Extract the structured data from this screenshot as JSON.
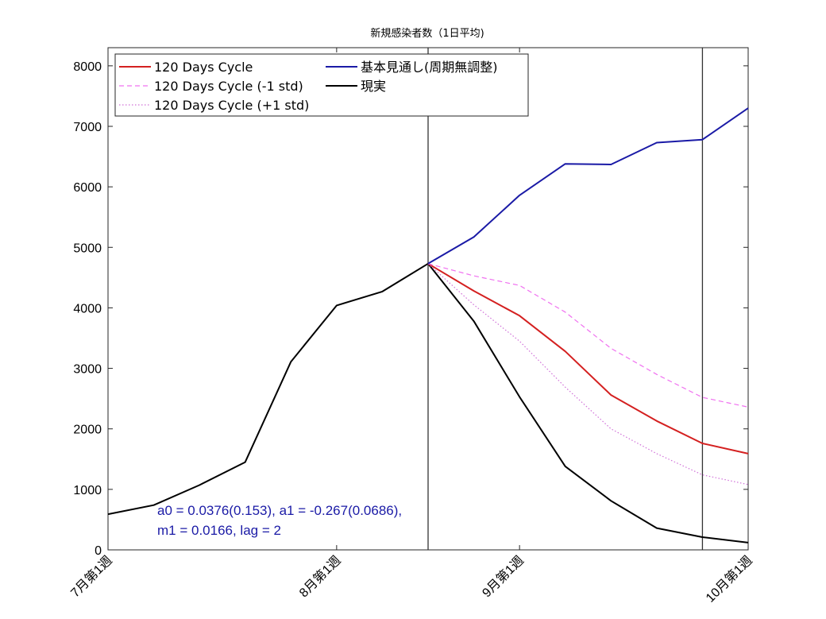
{
  "chart_data": {
    "type": "line",
    "title": "新規感染者数（1日平均)",
    "xlabel": "",
    "ylabel": "",
    "xlim": [
      0,
      14
    ],
    "ylim": [
      0,
      8300
    ],
    "yticks": [
      0,
      1000,
      2000,
      3000,
      4000,
      5000,
      6000,
      7000,
      8000
    ],
    "xticks": [
      {
        "x": 0,
        "label": "7月第1週"
      },
      {
        "x": 5,
        "label": "8月第1週"
      },
      {
        "x": 9,
        "label": "9月第1週"
      },
      {
        "x": 14,
        "label": "10月第1週"
      }
    ],
    "vlines": [
      7,
      13
    ],
    "grid": false,
    "legend_position": "top-left",
    "series": [
      {
        "name": "120 Days Cycle",
        "color": "#d42020",
        "style": "solid",
        "x": [
          7,
          8,
          9,
          10,
          11,
          12,
          13,
          14
        ],
        "y": [
          4730,
          4280,
          3870,
          3280,
          2560,
          2130,
          1760,
          1590
        ]
      },
      {
        "name": "120 Days Cycle (-1 std)",
        "color": "#f070f0",
        "style": "dashed",
        "x": [
          7,
          8,
          9,
          10,
          11,
          12,
          13,
          14
        ],
        "y": [
          4730,
          4530,
          4370,
          3930,
          3330,
          2900,
          2520,
          2360
        ]
      },
      {
        "name": "120 Days Cycle (+1 std)",
        "color": "#d070d8",
        "style": "dotted",
        "x": [
          7,
          8,
          9,
          10,
          11,
          12,
          13,
          14
        ],
        "y": [
          4730,
          4050,
          3450,
          2690,
          2000,
          1590,
          1240,
          1080
        ]
      },
      {
        "name": "基本見通し(周期無調整)",
        "color": "#1a1aa6",
        "style": "solid",
        "x": [
          7,
          8,
          9,
          10,
          11,
          12,
          13,
          14
        ],
        "y": [
          4730,
          5170,
          5860,
          6380,
          6370,
          6730,
          6780,
          7300
        ]
      },
      {
        "name": "現実",
        "color": "#000000",
        "style": "solid",
        "x": [
          0,
          1,
          2,
          3,
          4,
          5,
          6,
          7,
          8,
          9,
          10,
          11,
          12,
          13,
          14
        ],
        "y": [
          590,
          740,
          1070,
          1450,
          3110,
          4040,
          4270,
          4730,
          3780,
          2530,
          1380,
          810,
          360,
          210,
          120
        ]
      }
    ],
    "annotation": [
      "a0 = 0.0376(0.153), a1 = -0.267(0.0686),",
      "m1 = 0.0166, lag = 2"
    ]
  }
}
